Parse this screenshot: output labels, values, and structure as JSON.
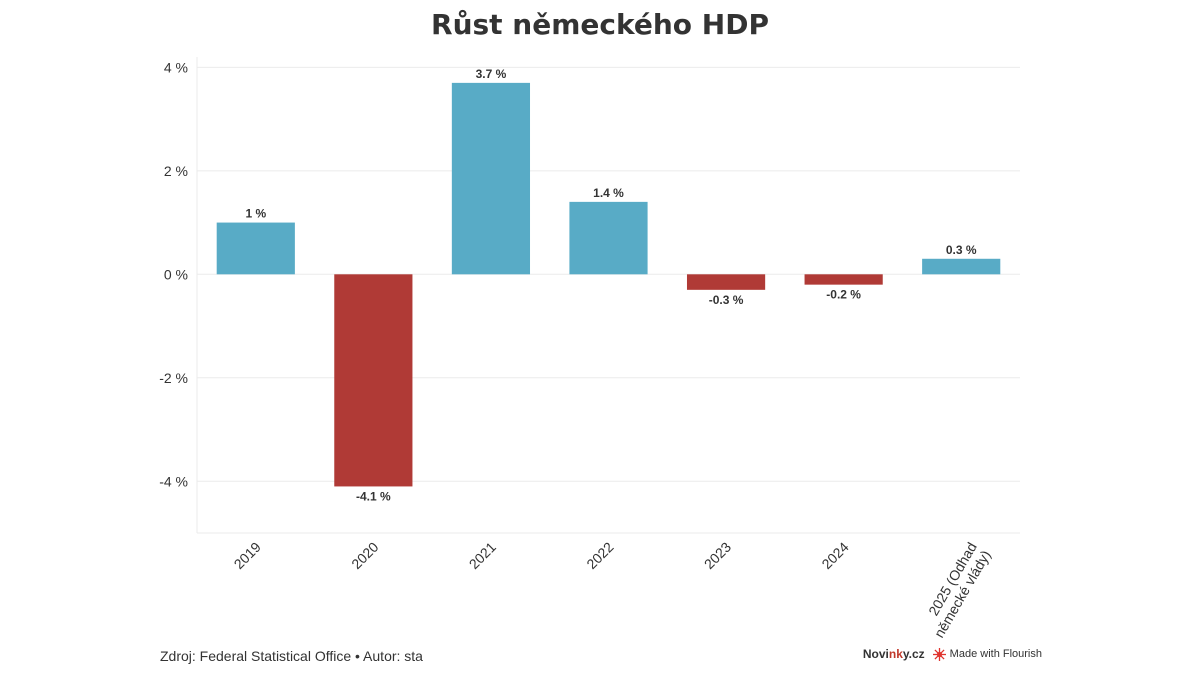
{
  "chart_data": {
    "type": "bar",
    "title": "Růst německého HDP",
    "categories": [
      "2019",
      "2020",
      "2021",
      "2022",
      "2023",
      "2024",
      "2025 (Odhad německé vlády)"
    ],
    "values": [
      1,
      -4.1,
      3.7,
      1.4,
      -0.3,
      -0.2,
      0.3
    ],
    "data_labels": [
      "1 %",
      "-4.1 %",
      "3.7 %",
      "1.4 %",
      "-0.3 %",
      "-0.2 %",
      "0.3 %"
    ],
    "yticks": [
      4,
      2,
      0,
      -2,
      -4
    ],
    "ytick_labels": [
      "4 %",
      "2 %",
      "0 %",
      "-2 %",
      "-4 %"
    ],
    "ylim": [
      -5,
      4.2
    ],
    "grid": true,
    "colors": {
      "positive": "#58abc6",
      "negative": "#b03a36"
    }
  },
  "footer": {
    "source": "Zdroj: Federal Statistical Office • Autor: sta",
    "brand_prefix": "Novi",
    "brand_highlight": "nk",
    "brand_suffix": "y.cz",
    "made_with": "Made with Flourish"
  }
}
